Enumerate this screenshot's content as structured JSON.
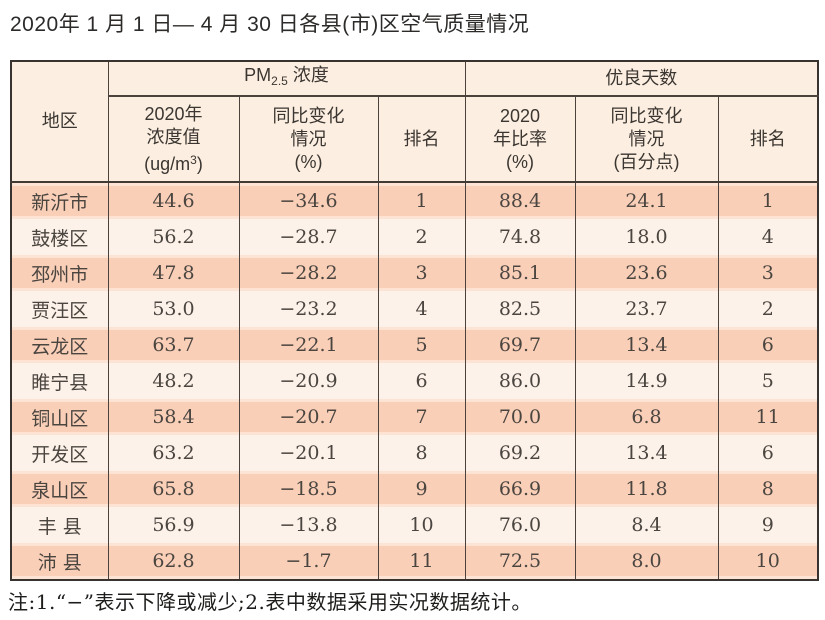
{
  "title": "2020年 1 月 1 日— 4 月 30 日各县(市)区空气质量情况",
  "note": "注:1.“−”表示下降或减少;2.表中数据采用实况数据统计。",
  "colors": {
    "row_salmon": "#f9cfb8",
    "row_light": "#fdf2e9",
    "header_bg": "#fcefe1",
    "border_dark": "#4a423b",
    "text_dark": "#4b4540"
  },
  "table": {
    "header": {
      "region": "地区",
      "pm_group": {
        "prefix": "PM",
        "sub": "2.5",
        "suffix": "浓度"
      },
      "good_days": "优良天数",
      "pm_value": {
        "l1": "2020年",
        "l2": "浓度值",
        "unit_pre": "(ug/m",
        "unit_sup": "3",
        "unit_post": ")"
      },
      "pm_change": {
        "l1": "同比变化",
        "l2": "情况",
        "l3": "(%)"
      },
      "pm_rank": "排名",
      "gd_ratio": {
        "l1": "2020",
        "l2": "年比率",
        "l3": "(%)"
      },
      "gd_change": {
        "l1": "同比变化",
        "l2": "情况",
        "l3": "(百分点)"
      },
      "gd_rank": "排名"
    },
    "rows": [
      {
        "region": "新沂市",
        "pm_value": "44.6",
        "pm_change": "−34.6",
        "pm_rank": "1",
        "gd_ratio": "88.4",
        "gd_change": "24.1",
        "gd_rank": "1"
      },
      {
        "region": "鼓楼区",
        "pm_value": "56.2",
        "pm_change": "−28.7",
        "pm_rank": "2",
        "gd_ratio": "74.8",
        "gd_change": "18.0",
        "gd_rank": "4"
      },
      {
        "region": "邳州市",
        "pm_value": "47.8",
        "pm_change": "−28.2",
        "pm_rank": "3",
        "gd_ratio": "85.1",
        "gd_change": "23.6",
        "gd_rank": "3"
      },
      {
        "region": "贾汪区",
        "pm_value": "53.0",
        "pm_change": "−23.2",
        "pm_rank": "4",
        "gd_ratio": "82.5",
        "gd_change": "23.7",
        "gd_rank": "2"
      },
      {
        "region": "云龙区",
        "pm_value": "63.7",
        "pm_change": "−22.1",
        "pm_rank": "5",
        "gd_ratio": "69.7",
        "gd_change": "13.4",
        "gd_rank": "6"
      },
      {
        "region": "睢宁县",
        "pm_value": "48.2",
        "pm_change": "−20.9",
        "pm_rank": "6",
        "gd_ratio": "86.0",
        "gd_change": "14.9",
        "gd_rank": "5"
      },
      {
        "region": "铜山区",
        "pm_value": "58.4",
        "pm_change": "−20.7",
        "pm_rank": "7",
        "gd_ratio": "70.0",
        "gd_change": "6.8",
        "gd_rank": "11"
      },
      {
        "region": "开发区",
        "pm_value": "63.2",
        "pm_change": "−20.1",
        "pm_rank": "8",
        "gd_ratio": "69.2",
        "gd_change": "13.4",
        "gd_rank": "6"
      },
      {
        "region": "泉山区",
        "pm_value": "65.8",
        "pm_change": "−18.5",
        "pm_rank": "9",
        "gd_ratio": "66.9",
        "gd_change": "11.8",
        "gd_rank": "8"
      },
      {
        "region": "丰 县",
        "pm_value": "56.9",
        "pm_change": "−13.8",
        "pm_rank": "10",
        "gd_ratio": "76.0",
        "gd_change": "8.4",
        "gd_rank": "9"
      },
      {
        "region": "沛 县",
        "pm_value": "62.8",
        "pm_change": "−1.7",
        "pm_rank": "11",
        "gd_ratio": "72.5",
        "gd_change": "8.0",
        "gd_rank": "10"
      }
    ]
  }
}
